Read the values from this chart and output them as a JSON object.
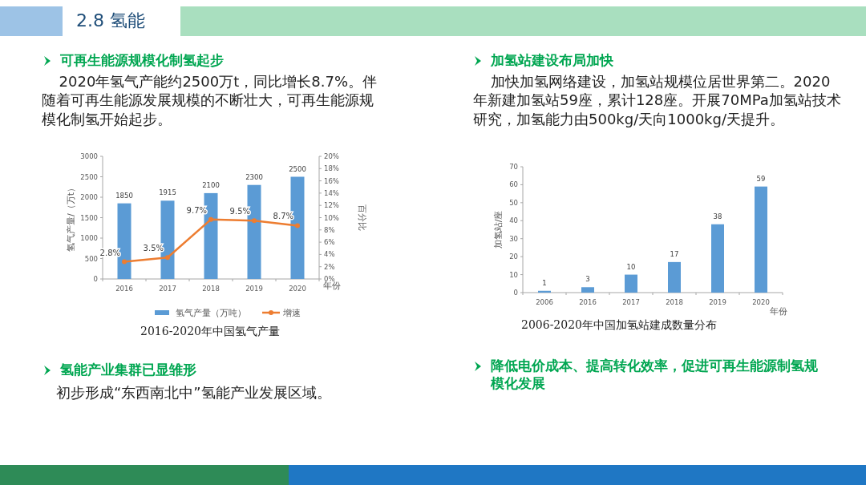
{
  "chart_data": [
    {
      "type": "bar",
      "title": "2016-2020年中国氢气产量",
      "xlabel": "年份",
      "ylabel": "氢气产量/（万t）",
      "y2label": "百分比",
      "categories": [
        "2016",
        "2017",
        "2018",
        "2019",
        "2020"
      ],
      "series": [
        {
          "name": "氢气产量（万吨）",
          "type": "bar",
          "color": "#5b9bd5",
          "values": [
            1850,
            1915,
            2100,
            2300,
            2500
          ],
          "value_labels": [
            "1850",
            "1915",
            "2100",
            "2300",
            "2500"
          ]
        },
        {
          "name": "增速",
          "type": "line",
          "axis": "y2",
          "color": "#ed7d31",
          "marker": "circle",
          "values": [
            2.8,
            3.5,
            9.7,
            9.5,
            8.7
          ],
          "value_labels": [
            "2.8%",
            "3.5%",
            "9.7%",
            "9.5%",
            "8.7%"
          ]
        }
      ],
      "ylim": [
        0,
        3000
      ],
      "yticks": [
        0,
        500,
        1000,
        1500,
        2000,
        2500,
        3000
      ],
      "y2lim": [
        0,
        20
      ],
      "y2ticks": [
        {
          "value": 0,
          "label": "0%"
        },
        {
          "value": 2,
          "label": "2%"
        },
        {
          "value": 4,
          "label": "4%"
        },
        {
          "value": 6,
          "label": "6%"
        },
        {
          "value": 8,
          "label": "8%"
        },
        {
          "value": 10,
          "label": "10%"
        },
        {
          "value": 12,
          "label": "12%"
        },
        {
          "value": 14,
          "label": "14%"
        },
        {
          "value": 16,
          "label": "16%"
        },
        {
          "value": 18,
          "label": "18%"
        },
        {
          "value": 20,
          "label": "20%"
        }
      ],
      "legend": "bottom",
      "grid": false,
      "annotations": [
        "2.8 氢能",
        "可再生能源规模化制氢起步",
        "2020年氢气产能约2500万t，同比增长8.7%。伴随着可再生能源发展规模的不断壮大，可再生能源规模化制氢开始起步。",
        "氢能产业集群已显雏形",
        "初步形成“东西南北中”氢能产业发展区域。"
      ]
    },
    {
      "type": "bar",
      "title": "2006-2020年中国加氢站建成数量分布",
      "xlabel": "年份",
      "ylabel": "加氢站/座",
      "categories": [
        "2006",
        "2016",
        "2017",
        "2018",
        "2019",
        "2020"
      ],
      "values": [
        1,
        3,
        10,
        17,
        38,
        59
      ],
      "color": "#5b9bd5",
      "data_labels": true,
      "ylim": [
        0,
        70
      ],
      "yticks": [
        0,
        10,
        20,
        30,
        40,
        50,
        60,
        70
      ],
      "grid": false,
      "annotations": [
        "加氢站建设布局加快",
        "加快加氢网络建设，加氢站规模位居世界第二。2020年新建加氢站59座，累计128座。开展70MPa加氢站技术研究，加氢能力由500kg/天向1000kg/天提升。",
        "降低电价成本、提高转化效率，促进可再生能源制氢规模化发展"
      ]
    }
  ]
}
